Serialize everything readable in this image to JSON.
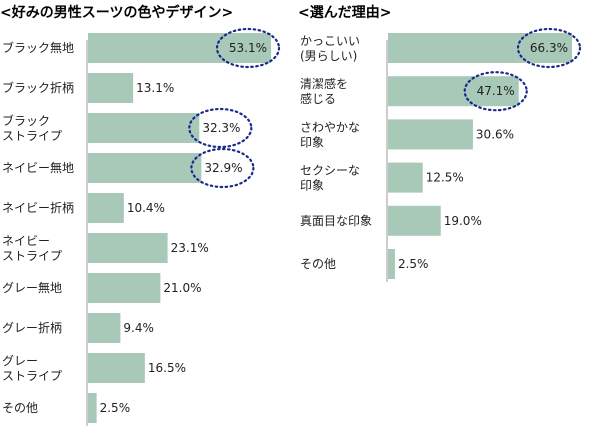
{
  "chart_data": [
    {
      "type": "bar",
      "orientation": "horizontal",
      "title": "<好みの男性スーツの色やデザイン>",
      "xlabel": "",
      "ylabel": "",
      "categories": [
        "ブラック無地",
        "ブラック折柄",
        "ブラック\nストライプ",
        "ネイビー無地",
        "ネイビー折柄",
        "ネイビー\nストライプ",
        "グレー無地",
        "グレー折柄",
        "グレー\nストライプ",
        "その他"
      ],
      "values": [
        53.1,
        13.1,
        32.3,
        32.9,
        10.4,
        23.1,
        21.0,
        9.4,
        16.5,
        2.5
      ],
      "value_labels": [
        "53.1%",
        "13.1%",
        "32.3%",
        "32.9%",
        "10.4%",
        "23.1%",
        "21.0%",
        "9.4%",
        "16.5%",
        "2.5%"
      ],
      "highlighted": [
        0,
        2,
        3
      ],
      "xlim": [
        0,
        58
      ],
      "grid": false,
      "legend": "none"
    },
    {
      "type": "bar",
      "orientation": "horizontal",
      "title": "<選んだ理由>",
      "xlabel": "",
      "ylabel": "",
      "categories": [
        "かっこいい\n(男らしい)",
        "清潔感を\n感じる",
        "さわやかな\n印象",
        "セクシーな\n印象",
        "真面目な印象",
        "その他"
      ],
      "values": [
        66.3,
        47.1,
        30.6,
        12.5,
        19.0,
        2.5
      ],
      "value_labels": [
        "66.3%",
        "47.1%",
        "30.6%",
        "12.5%",
        "19.0%",
        "2.5%"
      ],
      "highlighted": [
        0,
        1
      ],
      "xlim": [
        0,
        72
      ],
      "grid": false,
      "legend": "none"
    }
  ],
  "colors": {
    "bar": "#a8c8b8",
    "text": "#222222",
    "highlight_ring": "#1a2a8c",
    "axis": "#999999"
  }
}
